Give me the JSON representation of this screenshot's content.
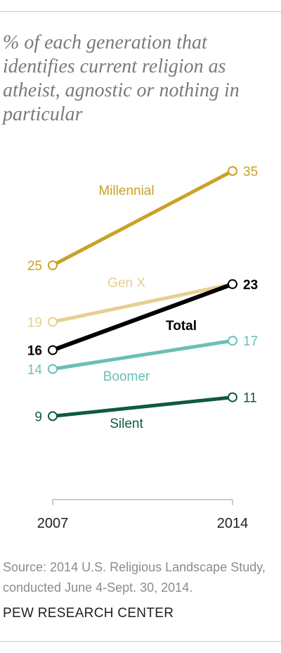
{
  "title": "% of each generation that identifies current religion as atheist, agnostic or nothing in particular",
  "source": "Source: 2014 U.S. Religious Landscape Study, conducted June 4-Sept. 30, 2014.",
  "brand": "PEW RESEARCH CENTER",
  "chart_data": {
    "type": "line",
    "title": "% of each generation that identifies current religion as atheist, agnostic or nothing in particular",
    "x": [
      "2007",
      "2014"
    ],
    "ylabel": "",
    "xlabel": "",
    "grid": false,
    "legend": "inline labels",
    "series": [
      {
        "name": "Millennial",
        "values": [
          25,
          35
        ],
        "color": "#c9a227"
      },
      {
        "name": "Gen X",
        "values": [
          19,
          23
        ],
        "color": "#e6d08f"
      },
      {
        "name": "Total",
        "values": [
          16,
          23
        ],
        "color": "#000000"
      },
      {
        "name": "Boomer",
        "values": [
          14,
          17
        ],
        "color": "#6bbfb3"
      },
      {
        "name": "Silent",
        "values": [
          9,
          11
        ],
        "color": "#0e5a44"
      }
    ]
  }
}
